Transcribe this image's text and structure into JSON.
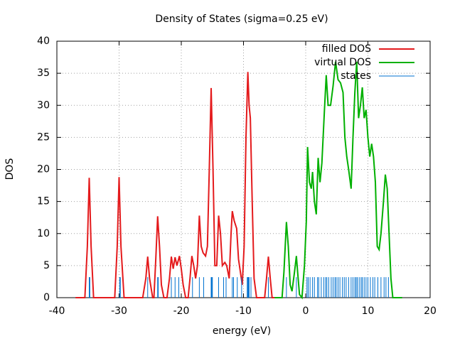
{
  "chart_data": {
    "type": "line",
    "title": "Density of States (sigma=0.25 eV)",
    "xlabel": "energy (eV)",
    "ylabel": "DOS",
    "xlim": [
      -40,
      20
    ],
    "ylim": [
      0,
      40
    ],
    "xticks": [
      -40,
      -30,
      -20,
      -10,
      0,
      10,
      20
    ],
    "yticks": [
      0,
      5,
      10,
      15,
      20,
      25,
      30,
      35,
      40
    ],
    "grid": true,
    "legend": "top-right",
    "series": [
      {
        "name": "filled DOS",
        "color": "#e41a1c",
        "style": "line",
        "x": [
          -37,
          -35.5,
          -35.1,
          -34.8,
          -34.5,
          -34.1,
          -30.7,
          -30.3,
          -30,
          -29.7,
          -29.2,
          -26.2,
          -25.7,
          -25.4,
          -25.1,
          -24.6,
          -24.4,
          -24.1,
          -23.8,
          -23.5,
          -23.2,
          -22.8,
          -22.3,
          -21.9,
          -21.6,
          -21.3,
          -21,
          -20.7,
          -20.3,
          -20,
          -19.7,
          -19.3,
          -18.9,
          -18.6,
          -18.3,
          -18,
          -17.7,
          -17.4,
          -17.1,
          -16.8,
          -16.5,
          -16.1,
          -15.8,
          -15.5,
          -15.2,
          -14.9,
          -14.6,
          -14.3,
          -14,
          -13.7,
          -13.4,
          -13,
          -12.7,
          -12.3,
          -12,
          -11.8,
          -11.5,
          -11.1,
          -10.8,
          -10.5,
          -10.2,
          -9.9,
          -9.6,
          -9.3,
          -9.1,
          -8.9,
          -8.6,
          -8.3,
          -7.9,
          -6.6,
          -6.3,
          -6,
          -5.7,
          -5.4,
          -5
        ],
        "values": [
          0,
          0,
          8,
          18.7,
          8,
          0,
          0,
          8,
          18.8,
          8,
          0,
          0,
          3,
          6.4,
          3,
          0,
          0,
          6,
          12.7,
          8,
          2,
          0,
          0,
          3,
          6.4,
          4.5,
          6.3,
          5,
          6.5,
          4.5,
          2,
          0,
          0,
          3,
          6.5,
          5,
          3,
          5,
          12.8,
          8,
          7,
          6.5,
          8,
          20,
          32.7,
          20,
          5,
          5,
          12.8,
          10,
          5,
          5.5,
          5,
          3,
          10,
          13.5,
          12,
          10.8,
          6,
          4,
          2,
          8,
          25,
          35.2,
          30,
          28,
          15,
          3,
          0,
          0,
          3,
          6.4,
          3,
          0,
          0
        ]
      },
      {
        "name": "virtual DOS",
        "color": "#00b000",
        "style": "line",
        "x": [
          -5,
          -3.8,
          -3.5,
          -3.1,
          -2.8,
          -2.5,
          -2.2,
          -1.8,
          -1.5,
          -1.3,
          -1,
          -0.6,
          -0.2,
          0.1,
          0.3,
          0.6,
          0.9,
          1.1,
          1.4,
          1.7,
          2,
          2.3,
          2.6,
          3,
          3.3,
          3.6,
          4,
          4.4,
          4.8,
          5.2,
          5.6,
          6,
          6.3,
          6.6,
          6.9,
          7.3,
          7.6,
          7.9,
          8.2,
          8.5,
          8.8,
          9.1,
          9.4,
          9.7,
          10,
          10.3,
          10.6,
          10.9,
          11.2,
          11.5,
          11.8,
          12.1,
          12.5,
          12.8,
          13.1,
          13.4,
          13.7,
          14,
          15.5
        ],
        "values": [
          0,
          0,
          4,
          11.8,
          8,
          2,
          1,
          4,
          6.5,
          4,
          0.5,
          0,
          5,
          12,
          23.5,
          18,
          17,
          19.6,
          15,
          13,
          21.8,
          18,
          21,
          29,
          34.7,
          30,
          30,
          33,
          36.8,
          34,
          33.5,
          32,
          25,
          22,
          20,
          17,
          25,
          32,
          36.8,
          28,
          30,
          32.8,
          28,
          29.3,
          25,
          22,
          24,
          22,
          18,
          8,
          7.5,
          10,
          15,
          19.2,
          17,
          10,
          3,
          0,
          0
        ]
      },
      {
        "name": "states",
        "color": "#0072d0",
        "style": "impulses",
        "x": [
          -34.8,
          -34.7,
          -29.9,
          -29.8,
          -25.4,
          -23.8,
          -23.7,
          -21.6,
          -21,
          -20.4,
          -18.2,
          -17.1,
          -16.4,
          -15.2,
          -15.1,
          -15,
          -14,
          -13.2,
          -12.8,
          -11.8,
          -11.6,
          -11,
          -10.3,
          -9.4,
          -9.3,
          -9.2,
          -9.1,
          -8.8,
          -6,
          -3.1,
          -1.5,
          0.2,
          0.4,
          0.7,
          1.1,
          1.4,
          1.9,
          2.1,
          2.5,
          2.9,
          3.2,
          3.4,
          3.7,
          4.1,
          4.4,
          4.7,
          4.9,
          5.2,
          5.5,
          5.9,
          6.2,
          6.5,
          6.9,
          7.3,
          7.6,
          7.9,
          8.1,
          8.3,
          8.6,
          8.9,
          9.1,
          9.4,
          9.7,
          10,
          10.4,
          10.8,
          11.1,
          11.6,
          12.1,
          12.6,
          12.9,
          13.3
        ],
        "values": [
          3.2,
          3.2,
          3.2,
          3.2,
          3.2,
          3.2,
          3.2,
          3.2,
          3.2,
          3.2,
          3.2,
          3.2,
          3.2,
          3.2,
          3.2,
          3.2,
          3.2,
          3.2,
          3.2,
          3.2,
          3.2,
          3.2,
          3.2,
          3.2,
          3.2,
          3.2,
          3.2,
          3.2,
          3.2,
          3.2,
          3.2,
          3.2,
          3.2,
          3.2,
          3.2,
          3.2,
          3.2,
          3.2,
          3.2,
          3.2,
          3.2,
          3.2,
          3.2,
          3.2,
          3.2,
          3.2,
          3.2,
          3.2,
          3.2,
          3.2,
          3.2,
          3.2,
          3.2,
          3.2,
          3.2,
          3.2,
          3.2,
          3.2,
          3.2,
          3.2,
          3.2,
          3.2,
          3.2,
          3.2,
          3.2,
          3.2,
          3.2,
          3.2,
          3.2,
          3.2,
          3.2,
          3.2
        ]
      }
    ]
  }
}
